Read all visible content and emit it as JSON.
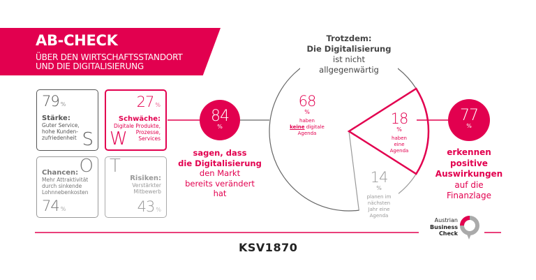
{
  "header": {
    "title": "AB-CHECK",
    "subtitle_lines": [
      "ÜBER DEN WIRTSCHAFTSSTANDORT",
      "UND DIE DIGITALISIERUNG"
    ]
  },
  "swot": {
    "s": {
      "value": "79",
      "unit": "%",
      "heading": "Stärke:",
      "text": [
        "Guter Service,",
        "hohe Kunden-",
        "zufriedenheit"
      ],
      "letter": "S"
    },
    "w": {
      "value": "27",
      "unit": "%",
      "heading": "Schwäche:",
      "text": [
        "Digitale Produkte,",
        "Prozesse,",
        "Services"
      ],
      "letter": "W"
    },
    "o": {
      "value": "74",
      "unit": "%",
      "heading": "Chancen:",
      "text": [
        "Mehr Attraktivität",
        "durch sinkende",
        "Lohnnebenkosten"
      ],
      "letter": "O"
    },
    "t": {
      "value": "43",
      "unit": "%",
      "heading": "Risiken:",
      "text": [
        "Verstärkter",
        "Mitbewerb"
      ],
      "letter": "T"
    }
  },
  "stat84": {
    "value": "84",
    "unit": "%",
    "caption": [
      "sagen, dass",
      "die Digitalisierung",
      "den Markt",
      "bereits verändert",
      "hat"
    ]
  },
  "pie": {
    "title": [
      "Trotzdem:",
      "Die Digitalisierung",
      "ist nicht",
      "allgegenwärtig"
    ],
    "slices": [
      {
        "value": "68",
        "unit": "%",
        "label_pre": "haben",
        "label_emph": "keine",
        "label_post": "digitale",
        "label_end": "Agenda",
        "percent": 68
      },
      {
        "value": "18",
        "unit": "%",
        "label": [
          "haben",
          "eine",
          "Agenda"
        ],
        "percent": 18
      },
      {
        "value": "14",
        "unit": "%",
        "label": [
          "planen im",
          "nächsten",
          "Jahr eine",
          "Agenda"
        ],
        "percent": 14
      }
    ]
  },
  "stat77": {
    "value": "77",
    "unit": "%",
    "caption": [
      "erkennen",
      "positive",
      "Auswirkungen",
      "auf die",
      "Finanzlage"
    ]
  },
  "footer": {
    "logo_ksv": "KSV1870",
    "logo_abc": [
      "Austrian",
      "Business",
      "Check"
    ]
  },
  "colors": {
    "accent": "#e2004f",
    "dark": "#555555",
    "muted": "#999999"
  }
}
